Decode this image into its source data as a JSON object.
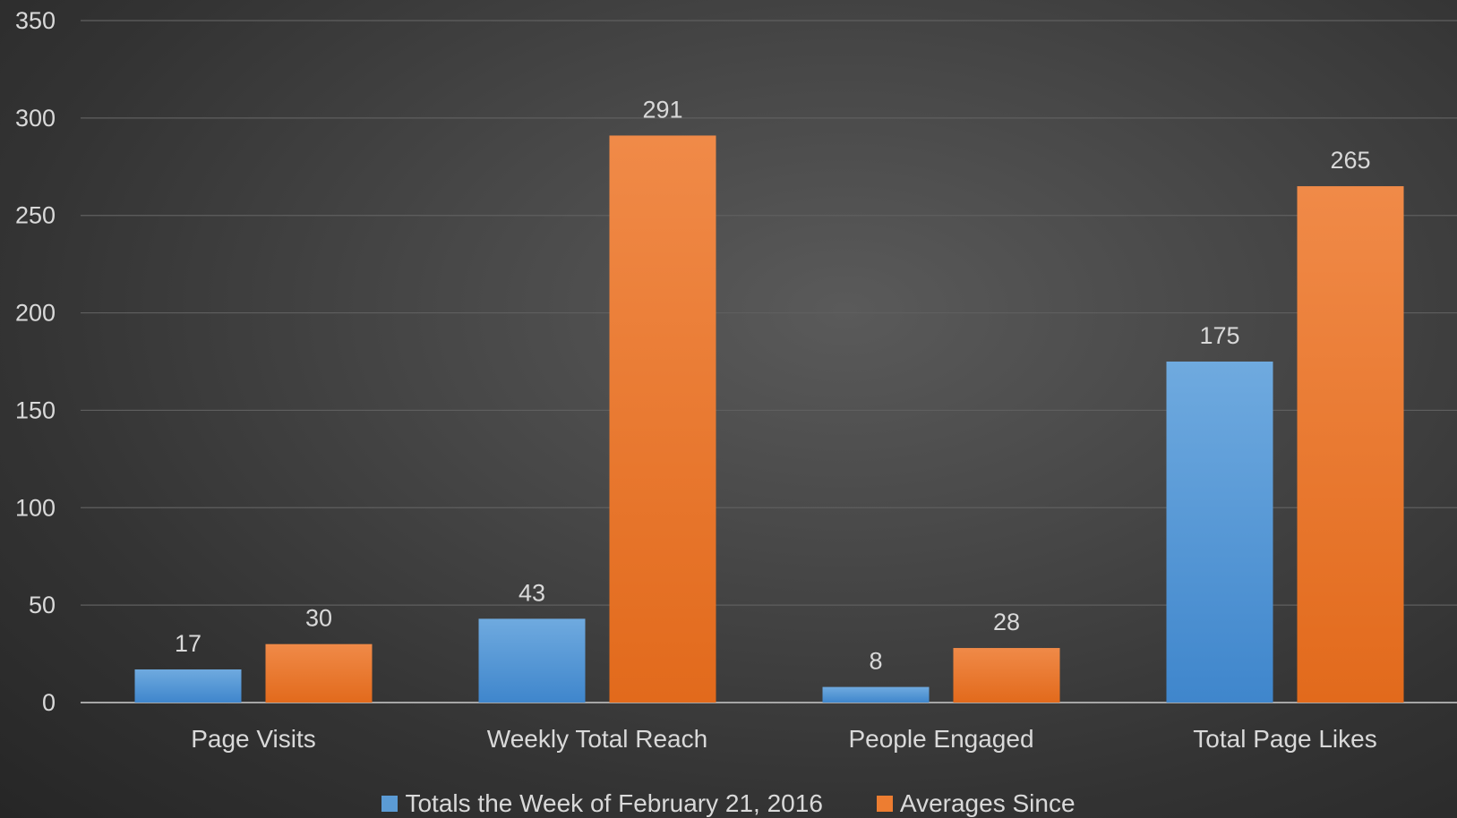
{
  "chart_data": {
    "type": "bar",
    "categories": [
      "Page Visits",
      "Weekly Total Reach",
      "People Engaged",
      "Total Page Likes"
    ],
    "series": [
      {
        "name": "Totals the Week of February 21, 2016",
        "color": "#5b9bd5",
        "values": [
          17,
          43,
          8,
          175
        ],
        "data_labels": [
          "17",
          "43",
          "8",
          "175"
        ]
      },
      {
        "name": "Averages Since",
        "color": "#ed7d31",
        "values": [
          30,
          291,
          28,
          265
        ],
        "data_labels": [
          "30",
          "291",
          "28",
          "265"
        ]
      }
    ],
    "ylim": [
      0,
      350
    ],
    "y_ticks": [
      0,
      50,
      100,
      150,
      200,
      250,
      300,
      350
    ],
    "y_tick_labels": [
      "0",
      "50",
      "100",
      "150",
      "200",
      "250",
      "300",
      "350"
    ],
    "grid": true,
    "legend_position": "bottom",
    "title": "",
    "xlabel": "",
    "ylabel": ""
  }
}
